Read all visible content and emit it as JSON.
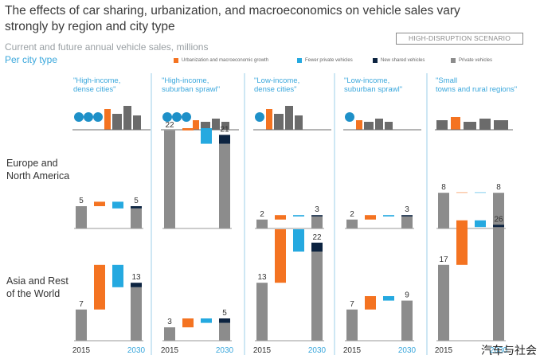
{
  "title": "The effects of car sharing, urbanization, and macroeconomics on vehicle sales vary strongly by region and city type",
  "subtitle": "Current and future annual vehicle sales, millions",
  "per_city_label": "Per city type",
  "scenario_label": "HIGH-DISRUPTION SCENARIO",
  "watermark": "汽车与社会",
  "row_labels": [
    "Europe and North America",
    "Asia and Rest of the World"
  ],
  "colors": {
    "private": "#8c8c8c",
    "urbanization": "#f47321",
    "fewer": "#25a9e0",
    "shared": "#0c2340",
    "divider": "#9ecfe8",
    "icon": "#6b6b6b"
  },
  "icons": [
    "money-building-icon",
    "money-house-icon",
    "money-factory-icon",
    "money-house-icon",
    "small-town-icon"
  ],
  "chart_data": {
    "type": "waterfall",
    "unit": "millions",
    "legend": [
      {
        "name": "Urbanization and macroeconomic growth",
        "color": "#f47321"
      },
      {
        "name": "Fewer private vehicles",
        "color": "#25a9e0"
      },
      {
        "name": "New shared vehicles",
        "color": "#0c2340"
      },
      {
        "name": "Private vehicles",
        "color": "#8c8c8c"
      }
    ],
    "x_labels": [
      "2015",
      "2030"
    ],
    "city_types": [
      "\"High-income, dense cities\"",
      "\"High-income, suburban sprawl\"",
      "\"Low-income, dense cities\"",
      "\"Low-income, suburban sprawl\"",
      "\"Small towns and rural regions\""
    ],
    "regions": [
      {
        "name": "Europe and North America",
        "panels": [
          {
            "start": 5,
            "urbanization": 1,
            "fewer_private": -1.5,
            "new_shared": 0.5,
            "end": 5
          },
          {
            "start": 22,
            "urbanization": 0.5,
            "fewer_private": -3.5,
            "new_shared": 2,
            "end": 21
          },
          {
            "start": 2,
            "urbanization": 1,
            "fewer_private": -0.3,
            "new_shared": 0.3,
            "end": 3
          },
          {
            "start": 2,
            "urbanization": 1,
            "fewer_private": -0.3,
            "new_shared": 0.3,
            "end": 3
          },
          {
            "start": 8,
            "urbanization": 0.1,
            "fewer_private": -0.1,
            "new_shared": 0,
            "end": 8
          }
        ]
      },
      {
        "name": "Asia and Rest of the World",
        "panels": [
          {
            "start": 7,
            "urbanization": 10,
            "fewer_private": -5,
            "new_shared": 1,
            "end": 13
          },
          {
            "start": 3,
            "urbanization": 2,
            "fewer_private": -1,
            "new_shared": 1,
            "end": 5
          },
          {
            "start": 13,
            "urbanization": 12,
            "fewer_private": -5,
            "new_shared": 2,
            "end": 22
          },
          {
            "start": 7,
            "urbanization": 3,
            "fewer_private": -1,
            "new_shared": 0,
            "end": 9
          },
          {
            "start": 17,
            "urbanization": 10,
            "fewer_private": -1.5,
            "new_shared": 0.5,
            "end": 26
          }
        ]
      }
    ]
  }
}
